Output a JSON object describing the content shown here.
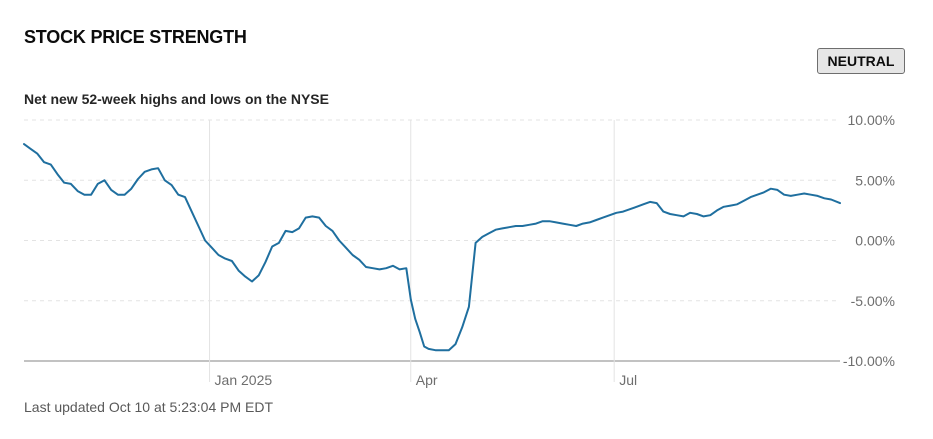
{
  "header": {
    "title": "STOCK PRICE STRENGTH",
    "status_badge": "NEUTRAL",
    "subtitle": "Net new 52-week highs and lows on the NYSE"
  },
  "footer": {
    "last_updated": "Last updated Oct 10 at 5:23:04 PM EDT"
  },
  "colors": {
    "line": "#1f6f9f",
    "grid": "#e3e3e3",
    "axis": "#9e9e9e",
    "label": "#6e6e6e"
  },
  "chart_data": {
    "type": "line",
    "title": "",
    "xlabel": "",
    "ylabel": "",
    "ylim": [
      -10,
      10
    ],
    "y_ticks": [
      10,
      5,
      0,
      -5,
      -10
    ],
    "y_tick_labels": [
      "10.00%",
      "5.00%",
      "0.00%",
      "-5.00%",
      "-10.00%"
    ],
    "xlim": [
      "2024-10-10",
      "2025-10-10"
    ],
    "x_ticks": [
      "2025-01-01",
      "2025-04-01",
      "2025-07-01"
    ],
    "x_tick_labels": [
      "Jan 2025",
      "Apr",
      "Jul"
    ],
    "grid": true,
    "series": [
      {
        "x": [
          "2024-10-10",
          "2024-10-13",
          "2024-10-16",
          "2024-10-19",
          "2024-10-22",
          "2024-10-25",
          "2024-10-28",
          "2024-10-31",
          "2024-11-03",
          "2024-11-06",
          "2024-11-09",
          "2024-11-12",
          "2024-11-15",
          "2024-11-18",
          "2024-11-21",
          "2024-11-24",
          "2024-11-27",
          "2024-11-30",
          "2024-12-03",
          "2024-12-06",
          "2024-12-09",
          "2024-12-12",
          "2024-12-15",
          "2024-12-18",
          "2024-12-21",
          "2024-12-24",
          "2024-12-27",
          "2024-12-30",
          "2025-01-02",
          "2025-01-05",
          "2025-01-08",
          "2025-01-11",
          "2025-01-14",
          "2025-01-17",
          "2025-01-20",
          "2025-01-23",
          "2025-01-26",
          "2025-01-29",
          "2025-02-01",
          "2025-02-04",
          "2025-02-07",
          "2025-02-10",
          "2025-02-13",
          "2025-02-16",
          "2025-02-19",
          "2025-02-22",
          "2025-02-25",
          "2025-02-28",
          "2025-03-03",
          "2025-03-06",
          "2025-03-09",
          "2025-03-12",
          "2025-03-15",
          "2025-03-18",
          "2025-03-21",
          "2025-03-24",
          "2025-03-27",
          "2025-03-30",
          "2025-04-01",
          "2025-04-03",
          "2025-04-05",
          "2025-04-07",
          "2025-04-09",
          "2025-04-12",
          "2025-04-15",
          "2025-04-18",
          "2025-04-21",
          "2025-04-24",
          "2025-04-27",
          "2025-04-30",
          "2025-05-03",
          "2025-05-06",
          "2025-05-09",
          "2025-05-12",
          "2025-05-15",
          "2025-05-18",
          "2025-05-21",
          "2025-05-24",
          "2025-05-27",
          "2025-05-30",
          "2025-06-02",
          "2025-06-05",
          "2025-06-08",
          "2025-06-11",
          "2025-06-14",
          "2025-06-17",
          "2025-06-20",
          "2025-06-23",
          "2025-06-26",
          "2025-06-29",
          "2025-07-02",
          "2025-07-05",
          "2025-07-08",
          "2025-07-11",
          "2025-07-14",
          "2025-07-17",
          "2025-07-20",
          "2025-07-23",
          "2025-07-26",
          "2025-07-29",
          "2025-08-01",
          "2025-08-04",
          "2025-08-07",
          "2025-08-10",
          "2025-08-13",
          "2025-08-16",
          "2025-08-19",
          "2025-08-22",
          "2025-08-25",
          "2025-08-28",
          "2025-08-31",
          "2025-09-03",
          "2025-09-06",
          "2025-09-09",
          "2025-09-12",
          "2025-09-15",
          "2025-09-18",
          "2025-09-21",
          "2025-09-24",
          "2025-09-27",
          "2025-09-30",
          "2025-10-03",
          "2025-10-06",
          "2025-10-10"
        ],
        "values": [
          8.0,
          7.6,
          7.2,
          6.5,
          6.3,
          5.5,
          4.8,
          4.7,
          4.1,
          3.8,
          3.8,
          4.7,
          5.0,
          4.2,
          3.8,
          3.8,
          4.3,
          5.1,
          5.7,
          5.9,
          6.0,
          5.0,
          4.6,
          3.8,
          3.6,
          2.4,
          1.2,
          0.0,
          -0.6,
          -1.2,
          -1.5,
          -1.7,
          -2.5,
          -3.0,
          -3.4,
          -2.9,
          -1.8,
          -0.5,
          -0.2,
          0.8,
          0.7,
          1.0,
          1.9,
          2.0,
          1.9,
          1.2,
          0.8,
          0.0,
          -0.6,
          -1.2,
          -1.6,
          -2.2,
          -2.3,
          -2.4,
          -2.3,
          -2.1,
          -2.4,
          -2.3,
          -4.9,
          -6.5,
          -7.6,
          -8.8,
          -9.0,
          -9.1,
          -9.1,
          -9.1,
          -8.6,
          -7.2,
          -5.5,
          -0.2,
          0.3,
          0.6,
          0.9,
          1.0,
          1.1,
          1.2,
          1.2,
          1.3,
          1.4,
          1.6,
          1.6,
          1.5,
          1.4,
          1.3,
          1.2,
          1.4,
          1.5,
          1.7,
          1.9,
          2.1,
          2.3,
          2.4,
          2.6,
          2.8,
          3.0,
          3.2,
          3.1,
          2.4,
          2.2,
          2.1,
          2.0,
          2.3,
          2.2,
          2.0,
          2.1,
          2.5,
          2.8,
          2.9,
          3.0,
          3.3,
          3.6,
          3.8,
          4.0,
          4.3,
          4.2,
          3.8,
          3.7,
          3.8,
          3.9,
          3.8,
          3.7,
          3.5,
          3.4,
          3.1
        ]
      }
    ]
  }
}
